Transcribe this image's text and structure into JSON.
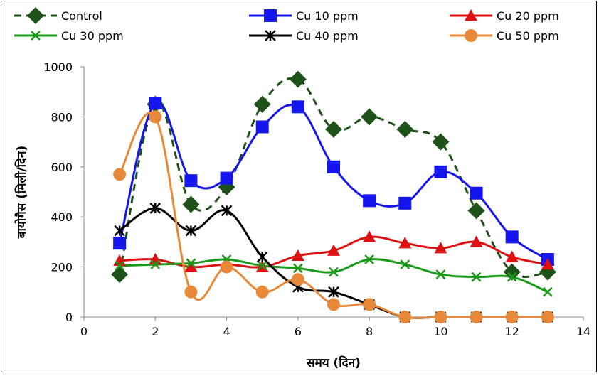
{
  "chart_data": {
    "type": "line",
    "xlabel": "समय (दिन)",
    "ylabel": "बायोगैस (मिली/दिन)",
    "xlim": [
      0,
      14
    ],
    "ylim": [
      0,
      1000
    ],
    "xticks": [
      0,
      2,
      4,
      6,
      8,
      10,
      12,
      14
    ],
    "yticks": [
      0,
      200,
      400,
      600,
      800,
      1000
    ],
    "grid": false,
    "legend_position": "top",
    "x": [
      1,
      2,
      3,
      4,
      5,
      6,
      7,
      8,
      9,
      10,
      11,
      12,
      13
    ],
    "series": [
      {
        "name": "Control",
        "color": "#1e5218",
        "dash": "dashed",
        "marker": "diamond",
        "values": [
          170,
          850,
          450,
          520,
          850,
          950,
          750,
          800,
          750,
          700,
          425,
          180,
          180
        ]
      },
      {
        "name": "Cu 10 ppm",
        "color": "#1515ee",
        "dash": "solid",
        "marker": "square",
        "values": [
          295,
          855,
          545,
          555,
          760,
          840,
          600,
          465,
          455,
          580,
          495,
          320,
          230
        ]
      },
      {
        "name": "Cu 20 ppm",
        "color": "#dd1111",
        "dash": "solid",
        "marker": "triangle",
        "values": [
          225,
          230,
          200,
          210,
          200,
          245,
          265,
          320,
          295,
          275,
          300,
          240,
          210
        ]
      },
      {
        "name": "Cu 30 ppm",
        "color": "#1a9a1a",
        "dash": "solid",
        "marker": "x",
        "values": [
          205,
          210,
          215,
          230,
          205,
          195,
          180,
          230,
          210,
          170,
          160,
          160,
          100
        ]
      },
      {
        "name": "Cu 40 ppm",
        "color": "#000000",
        "dash": "solid",
        "marker": "star",
        "values": [
          345,
          435,
          345,
          425,
          240,
          120,
          100,
          50,
          0,
          0,
          0,
          0,
          0
        ]
      },
      {
        "name": "Cu 50 ppm",
        "color": "#e8893a",
        "dash": "solid",
        "marker": "circle",
        "values": [
          570,
          800,
          100,
          200,
          100,
          150,
          50,
          50,
          0,
          0,
          0,
          0,
          0
        ]
      }
    ]
  }
}
